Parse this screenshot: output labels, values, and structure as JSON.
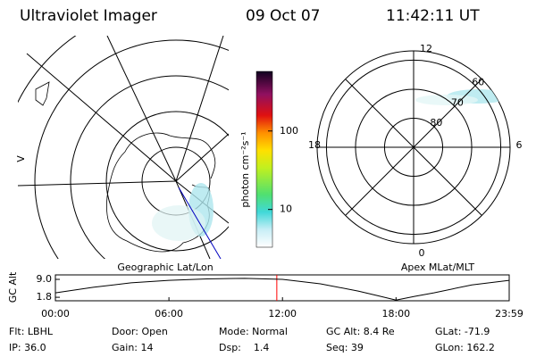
{
  "header": {
    "title": "Ultraviolet Imager",
    "date": "09 Oct 07",
    "time": "11:42:11 UT"
  },
  "map": {
    "side_label": "V"
  },
  "colorbar": {
    "label": "photon cm⁻²s⁻¹",
    "clim": [
      3.3,
      575
    ],
    "log": true,
    "ticks": [
      10,
      100
    ]
  },
  "polar": {
    "rings": [
      80,
      70,
      60
    ],
    "rlim": [
      90,
      56.8
    ],
    "mlt_labels": {
      "top": "12",
      "left": "18",
      "right": "6",
      "bottom": "0"
    }
  },
  "orbit": {
    "type": "line",
    "left_title": "Geographic Lat/Lon",
    "right_title": "Apex MLat/MLT",
    "ylabel": "GC Alt",
    "ylim": [
      0.4,
      10.8
    ],
    "yticks": [
      {
        "value": 9.0,
        "label": "9.0"
      },
      {
        "value": 1.8,
        "label": "1.8"
      }
    ],
    "xlim": [
      0,
      23.98
    ],
    "xticks": [
      {
        "value": 0,
        "label": "00:00"
      },
      {
        "value": 6,
        "label": "06:00"
      },
      {
        "value": 12,
        "label": "12:00"
      },
      {
        "value": 18,
        "label": "18:00"
      },
      {
        "value": 23.98,
        "label": "23:59"
      }
    ],
    "x": [
      0,
      2,
      4,
      6,
      8,
      10,
      12,
      14,
      16,
      17,
      18,
      19,
      20,
      22,
      23.98
    ],
    "values": [
      3.6,
      5.8,
      7.6,
      8.6,
      9.2,
      9.4,
      9.0,
      7.2,
      4.3,
      2.5,
      0.7,
      2.2,
      3.6,
      6.8,
      8.6
    ],
    "color": "#000000",
    "current_time": 11.7,
    "current_color": "#ff0000"
  },
  "footer": {
    "rows": [
      [
        "Flt: LBHL",
        "Door: Open",
        "Mode: Normal",
        "GC Alt: 8.4 Re",
        "GLat: -71.9"
      ],
      [
        "IP: 36.0",
        "Gain: 14",
        "Dsp:    1.4",
        "Seq: 39",
        "GLon: 162.2"
      ]
    ]
  }
}
